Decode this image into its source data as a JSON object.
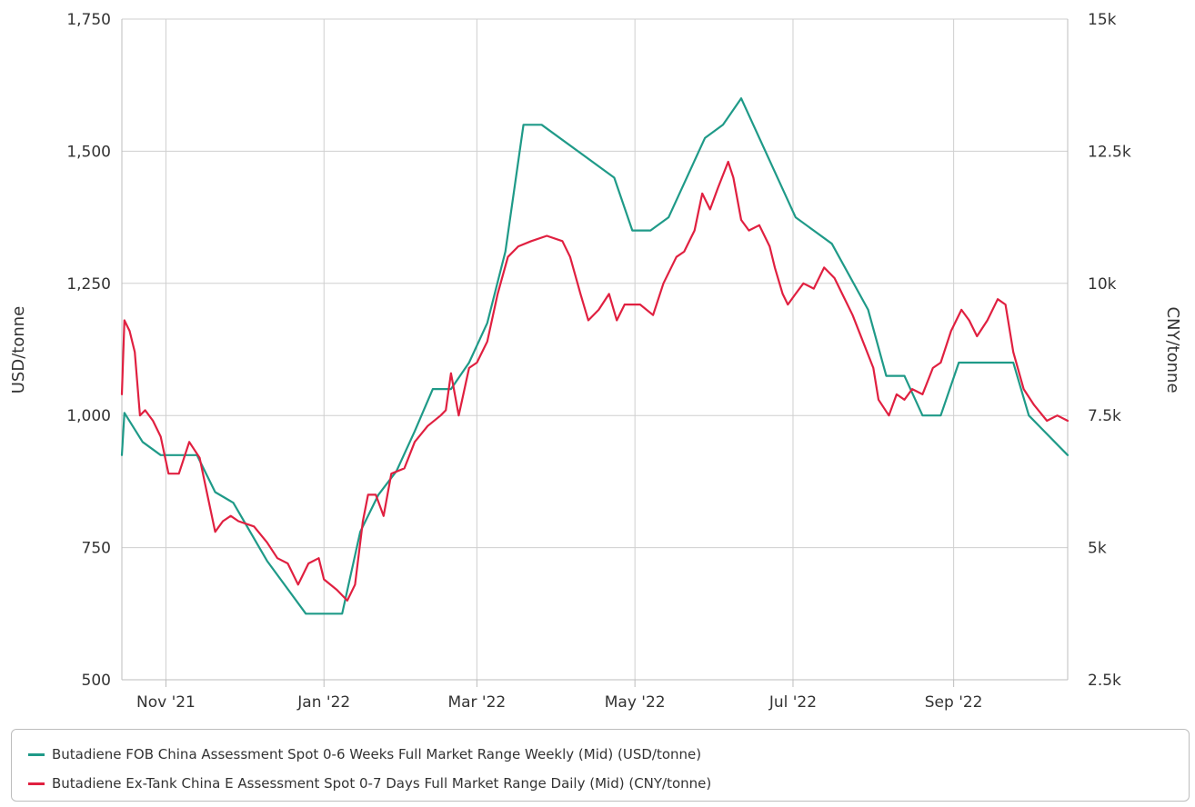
{
  "chart_data": {
    "type": "line",
    "x_axis": {
      "type": "date",
      "min": "2021-10-15",
      "max": "2022-10-15",
      "tick_labels": [
        "Nov '21",
        "Jan '22",
        "Mar '22",
        "May '22",
        "Jul '22",
        "Sep '22"
      ],
      "tick_dates": [
        "2021-11-01",
        "2022-01-01",
        "2022-03-01",
        "2022-05-01",
        "2022-07-01",
        "2022-09-01"
      ]
    },
    "y_axis_left": {
      "label": "USD/tonne",
      "range": [
        500,
        1750
      ],
      "ticks": [
        500,
        750,
        1000,
        1250,
        1500,
        1750
      ],
      "tick_labels": [
        "500",
        "750",
        "1,000",
        "1,250",
        "1,500",
        "1,750"
      ]
    },
    "y_axis_right": {
      "label": "CNY/tonne",
      "range": [
        2500,
        15000
      ],
      "ticks": [
        2500,
        5000,
        7500,
        10000,
        12500,
        15000
      ],
      "tick_labels": [
        "2.5k",
        "5k",
        "7.5k",
        "10k",
        "12.5k",
        "15k"
      ]
    },
    "grid": true,
    "legend_position": "bottom",
    "series": [
      {
        "name": "Butadiene FOB China Assessment Spot 0-6 Weeks Full Market Range Weekly (Mid) (USD/tonne)",
        "axis": "left",
        "color": "#1f9a88",
        "points": [
          [
            "2021-10-15",
            925
          ],
          [
            "2021-10-16",
            1005
          ],
          [
            "2021-10-23",
            950
          ],
          [
            "2021-10-30",
            925
          ],
          [
            "2021-11-13",
            925
          ],
          [
            "2021-11-20",
            855
          ],
          [
            "2021-11-27",
            835
          ],
          [
            "2021-12-10",
            725
          ],
          [
            "2021-12-25",
            625
          ],
          [
            "2022-01-08",
            625
          ],
          [
            "2022-01-15",
            780
          ],
          [
            "2022-01-22",
            850
          ],
          [
            "2022-01-29",
            895
          ],
          [
            "2022-02-05",
            970
          ],
          [
            "2022-02-12",
            1050
          ],
          [
            "2022-02-19",
            1050
          ],
          [
            "2022-02-26",
            1100
          ],
          [
            "2022-03-05",
            1175
          ],
          [
            "2022-03-12",
            1310
          ],
          [
            "2022-03-19",
            1550
          ],
          [
            "2022-03-26",
            1550
          ],
          [
            "2022-04-23",
            1450
          ],
          [
            "2022-04-30",
            1350
          ],
          [
            "2022-05-07",
            1350
          ],
          [
            "2022-05-14",
            1375
          ],
          [
            "2022-05-28",
            1525
          ],
          [
            "2022-06-04",
            1550
          ],
          [
            "2022-06-11",
            1600
          ],
          [
            "2022-07-02",
            1375
          ],
          [
            "2022-07-16",
            1325
          ],
          [
            "2022-07-30",
            1200
          ],
          [
            "2022-08-06",
            1075
          ],
          [
            "2022-08-13",
            1075
          ],
          [
            "2022-08-20",
            1000
          ],
          [
            "2022-08-27",
            1000
          ],
          [
            "2022-09-03",
            1100
          ],
          [
            "2022-09-24",
            1100
          ],
          [
            "2022-09-30",
            1000
          ],
          [
            "2022-10-15",
            925
          ]
        ]
      },
      {
        "name": "Butadiene Ex-Tank China E Assessment Spot 0-7 Days Full Market Range Daily (Mid) (CNY/tonne)",
        "axis": "right",
        "color": "#e02040",
        "points": [
          [
            "2021-10-15",
            7900
          ],
          [
            "2021-10-16",
            9300
          ],
          [
            "2021-10-18",
            9100
          ],
          [
            "2021-10-20",
            8700
          ],
          [
            "2021-10-22",
            7500
          ],
          [
            "2021-10-24",
            7600
          ],
          [
            "2021-10-27",
            7400
          ],
          [
            "2021-10-30",
            7100
          ],
          [
            "2021-11-02",
            6400
          ],
          [
            "2021-11-06",
            6400
          ],
          [
            "2021-11-10",
            7000
          ],
          [
            "2021-11-14",
            6700
          ],
          [
            "2021-11-17",
            6000
          ],
          [
            "2021-11-20",
            5300
          ],
          [
            "2021-11-23",
            5500
          ],
          [
            "2021-11-26",
            5600
          ],
          [
            "2021-11-29",
            5500
          ],
          [
            "2021-12-05",
            5400
          ],
          [
            "2021-12-10",
            5100
          ],
          [
            "2021-12-14",
            4800
          ],
          [
            "2021-12-18",
            4700
          ],
          [
            "2021-12-22",
            4300
          ],
          [
            "2021-12-26",
            4700
          ],
          [
            "2021-12-30",
            4800
          ],
          [
            "2022-01-01",
            4400
          ],
          [
            "2022-01-06",
            4200
          ],
          [
            "2022-01-10",
            4000
          ],
          [
            "2022-01-13",
            4300
          ],
          [
            "2022-01-16",
            5500
          ],
          [
            "2022-01-18",
            6000
          ],
          [
            "2022-01-21",
            6000
          ],
          [
            "2022-01-24",
            5600
          ],
          [
            "2022-01-27",
            6400
          ],
          [
            "2022-02-01",
            6500
          ],
          [
            "2022-02-05",
            7000
          ],
          [
            "2022-02-10",
            7300
          ],
          [
            "2022-02-15",
            7500
          ],
          [
            "2022-02-17",
            7600
          ],
          [
            "2022-02-19",
            8300
          ],
          [
            "2022-02-22",
            7500
          ],
          [
            "2022-02-26",
            8400
          ],
          [
            "2022-03-01",
            8500
          ],
          [
            "2022-03-05",
            8900
          ],
          [
            "2022-03-09",
            9800
          ],
          [
            "2022-03-13",
            10500
          ],
          [
            "2022-03-17",
            10700
          ],
          [
            "2022-03-22",
            10800
          ],
          [
            "2022-03-28",
            10900
          ],
          [
            "2022-04-03",
            10800
          ],
          [
            "2022-04-06",
            10500
          ],
          [
            "2022-04-10",
            9800
          ],
          [
            "2022-04-13",
            9300
          ],
          [
            "2022-04-17",
            9500
          ],
          [
            "2022-04-21",
            9800
          ],
          [
            "2022-04-24",
            9300
          ],
          [
            "2022-04-27",
            9600
          ],
          [
            "2022-05-03",
            9600
          ],
          [
            "2022-05-08",
            9400
          ],
          [
            "2022-05-12",
            10000
          ],
          [
            "2022-05-17",
            10500
          ],
          [
            "2022-05-20",
            10600
          ],
          [
            "2022-05-24",
            11000
          ],
          [
            "2022-05-27",
            11700
          ],
          [
            "2022-05-30",
            11400
          ],
          [
            "2022-06-02",
            11800
          ],
          [
            "2022-06-06",
            12300
          ],
          [
            "2022-06-08",
            12000
          ],
          [
            "2022-06-11",
            11200
          ],
          [
            "2022-06-14",
            11000
          ],
          [
            "2022-06-18",
            11100
          ],
          [
            "2022-06-22",
            10700
          ],
          [
            "2022-06-24",
            10300
          ],
          [
            "2022-06-27",
            9800
          ],
          [
            "2022-06-29",
            9600
          ],
          [
            "2022-07-02",
            9800
          ],
          [
            "2022-07-05",
            10000
          ],
          [
            "2022-07-09",
            9900
          ],
          [
            "2022-07-13",
            10300
          ],
          [
            "2022-07-17",
            10100
          ],
          [
            "2022-07-20",
            9800
          ],
          [
            "2022-07-24",
            9400
          ],
          [
            "2022-07-28",
            8900
          ],
          [
            "2022-08-01",
            8400
          ],
          [
            "2022-08-03",
            7800
          ],
          [
            "2022-08-07",
            7500
          ],
          [
            "2022-08-10",
            7900
          ],
          [
            "2022-08-13",
            7800
          ],
          [
            "2022-08-16",
            8000
          ],
          [
            "2022-08-20",
            7900
          ],
          [
            "2022-08-24",
            8400
          ],
          [
            "2022-08-27",
            8500
          ],
          [
            "2022-08-31",
            9100
          ],
          [
            "2022-09-04",
            9500
          ],
          [
            "2022-09-07",
            9300
          ],
          [
            "2022-09-10",
            9000
          ],
          [
            "2022-09-14",
            9300
          ],
          [
            "2022-09-18",
            9700
          ],
          [
            "2022-09-21",
            9600
          ],
          [
            "2022-09-24",
            8700
          ],
          [
            "2022-09-28",
            8000
          ],
          [
            "2022-10-02",
            7700
          ],
          [
            "2022-10-07",
            7400
          ],
          [
            "2022-10-11",
            7500
          ],
          [
            "2022-10-15",
            7400
          ]
        ]
      }
    ]
  }
}
